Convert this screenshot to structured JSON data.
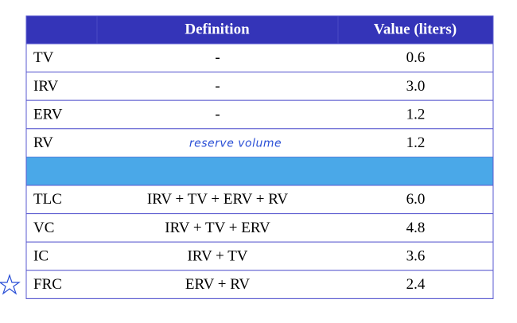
{
  "table": {
    "header": [
      "Definition",
      "Value (liters)"
    ],
    "sections": [
      [
        [
          "TV",
          "-",
          "0.6"
        ],
        [
          "IRV",
          "-",
          "3.0"
        ],
        [
          "ERV",
          "-",
          "1.2"
        ],
        [
          "RV",
          "reserve volume",
          "1.2"
        ]
      ],
      [
        [
          "TLC",
          "IRV + TV + ERV + RV",
          "6.0"
        ],
        [
          "VC",
          "IRV + TV + ERV",
          "4.8"
        ],
        [
          "IC",
          "IRV + TV",
          "3.6"
        ],
        [
          "FRC",
          "ERV + RV",
          "2.4"
        ]
      ]
    ]
  }
}
